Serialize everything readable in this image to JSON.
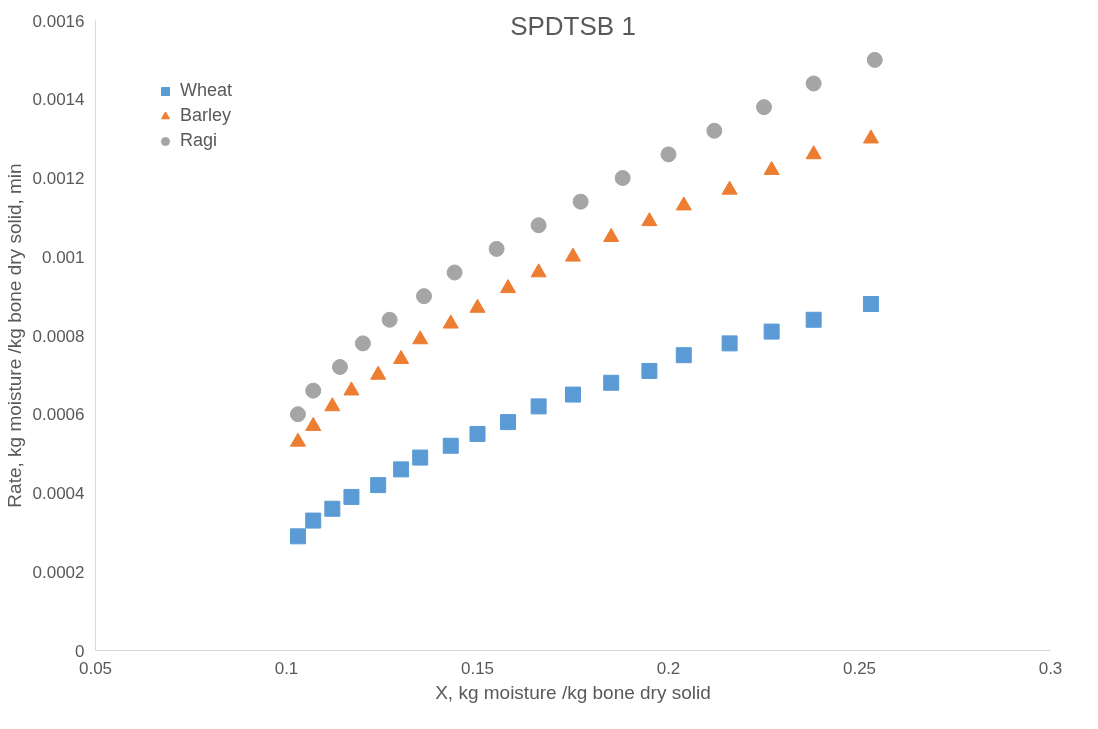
{
  "chart_data": {
    "type": "scatter",
    "title": "SPDTSB 1",
    "xlabel": "X, kg moisture /kg bone dry solid",
    "ylabel": "Rate, kg moisture /kg bone dry solid, min",
    "xlim": [
      0.05,
      0.3
    ],
    "xticks": [
      0.05,
      0.1,
      0.15,
      0.2,
      0.25,
      0.3
    ],
    "ylim": [
      0,
      0.0016
    ],
    "yticks": [
      0,
      0.0002,
      0.0004,
      0.0006,
      0.0008,
      0.001,
      0.0012,
      0.0014,
      0.0016
    ],
    "grid": false,
    "legend": "top left",
    "series": [
      {
        "name": "Wheat",
        "color": "#5b9bd5",
        "marker": "square",
        "x": [
          0.103,
          0.107,
          0.112,
          0.117,
          0.124,
          0.13,
          0.135,
          0.143,
          0.15,
          0.158,
          0.166,
          0.175,
          0.185,
          0.195,
          0.204,
          0.216,
          0.227,
          0.238,
          0.253
        ],
        "values": [
          0.00029,
          0.00033,
          0.00036,
          0.00039,
          0.00042,
          0.00046,
          0.00049,
          0.00052,
          0.00055,
          0.00058,
          0.00062,
          0.00065,
          0.00068,
          0.00071,
          0.00075,
          0.00078,
          0.00081,
          0.00084,
          0.00088
        ]
      },
      {
        "name": "Barley",
        "color": "#ed7d31",
        "marker": "triangle",
        "x": [
          0.103,
          0.107,
          0.112,
          0.117,
          0.124,
          0.13,
          0.135,
          0.143,
          0.15,
          0.158,
          0.166,
          0.175,
          0.185,
          0.195,
          0.204,
          0.216,
          0.227,
          0.238,
          0.253
        ],
        "values": [
          0.00053,
          0.00057,
          0.00062,
          0.00066,
          0.0007,
          0.00074,
          0.00079,
          0.00083,
          0.00087,
          0.00092,
          0.00096,
          0.001,
          0.00105,
          0.00109,
          0.00113,
          0.00117,
          0.00122,
          0.00126,
          0.0013
        ]
      },
      {
        "name": "Ragi",
        "color": "#a5a5a5",
        "marker": "circle",
        "x": [
          0.103,
          0.107,
          0.114,
          0.12,
          0.127,
          0.136,
          0.144,
          0.155,
          0.166,
          0.177,
          0.188,
          0.2,
          0.212,
          0.225,
          0.238,
          0.254
        ],
        "values": [
          0.0006,
          0.00066,
          0.00072,
          0.00078,
          0.00084,
          0.0009,
          0.00096,
          0.00102,
          0.00108,
          0.00114,
          0.0012,
          0.00126,
          0.00132,
          0.00138,
          0.00144,
          0.0015
        ]
      }
    ]
  }
}
